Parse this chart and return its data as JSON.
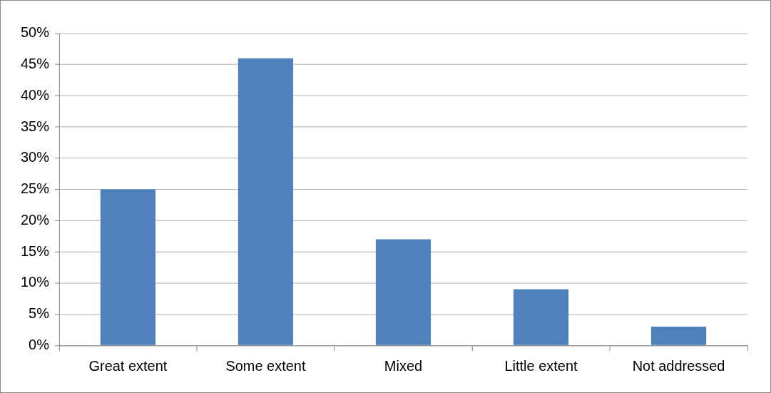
{
  "chart_data": {
    "type": "bar",
    "categories": [
      "Great extent",
      "Some extent",
      "Mixed",
      "Little extent",
      "Not addressed"
    ],
    "values": [
      25,
      46,
      17,
      9,
      3
    ],
    "color": "#4f81bd",
    "ylim": [
      0,
      50
    ],
    "yticks": [
      {
        "value": 0,
        "label": "0%"
      },
      {
        "value": 5,
        "label": "5%"
      },
      {
        "value": 10,
        "label": "10%"
      },
      {
        "value": 15,
        "label": "15%"
      },
      {
        "value": 20,
        "label": "20%"
      },
      {
        "value": 25,
        "label": "25%"
      },
      {
        "value": 30,
        "label": "30%"
      },
      {
        "value": 35,
        "label": "35%"
      },
      {
        "value": 40,
        "label": "40%"
      },
      {
        "value": 45,
        "label": "45%"
      },
      {
        "value": 50,
        "label": "50%"
      }
    ],
    "grid": "y"
  }
}
